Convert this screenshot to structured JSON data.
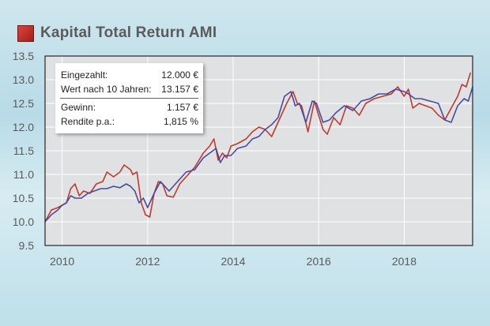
{
  "header": {
    "title": "Kapital Total Return AMI"
  },
  "info": {
    "rows": [
      {
        "label": "Eingezahlt:",
        "value": "12.000 €"
      },
      {
        "label": "Wert nach 10 Jahren:",
        "value": "13.157 €"
      },
      {
        "label": "Gewinn:",
        "value": "1.157 €"
      },
      {
        "label": "Rendite p.a.:",
        "value": "1,815 %"
      }
    ]
  },
  "colors": {
    "fund": "#c0392b",
    "comparison": "#4a4aa0",
    "plot_bg": "#dfe1e3",
    "grid": "#ffffff",
    "accent_square": "#b3241d"
  },
  "chart_data": {
    "type": "line",
    "title": "Kapital Total Return AMI",
    "xlabel": "",
    "ylabel": "",
    "xlim": [
      2009.6,
      2019.6
    ],
    "ylim": [
      9.5,
      13.5
    ],
    "xticks": [
      2010,
      2012,
      2014,
      2016,
      2018
    ],
    "xtick_labels": [
      "2010",
      "2012",
      "2014",
      "2016",
      "2018"
    ],
    "yticks": [
      9.5,
      10.0,
      10.5,
      11.0,
      11.5,
      12.0,
      12.5,
      13.0,
      13.5
    ],
    "ytick_labels": [
      "9.5",
      "10.0",
      "10.5",
      "11.0",
      "11.5",
      "12.0",
      "12.5",
      "13.0",
      "13.5"
    ],
    "grid": true,
    "series": [
      {
        "color": "#c0392b",
        "x": [
          2009.6,
          2009.75,
          2009.9,
          2010.0,
          2010.1,
          2010.2,
          2010.3,
          2010.4,
          2010.5,
          2010.65,
          2010.8,
          2010.95,
          2011.05,
          2011.2,
          2011.35,
          2011.45,
          2011.6,
          2011.65,
          2011.75,
          2011.85,
          2011.95,
          2012.05,
          2012.15,
          2012.25,
          2012.35,
          2012.45,
          2012.6,
          2012.75,
          2012.95,
          2013.1,
          2013.3,
          2013.45,
          2013.55,
          2013.65,
          2013.75,
          2013.85,
          2013.95,
          2014.1,
          2014.3,
          2014.45,
          2014.6,
          2014.75,
          2014.9,
          2015.0,
          2015.1,
          2015.25,
          2015.4,
          2015.5,
          2015.6,
          2015.75,
          2015.9,
          2016.0,
          2016.1,
          2016.2,
          2016.35,
          2016.5,
          2016.65,
          2016.8,
          2016.95,
          2017.1,
          2017.3,
          2017.5,
          2017.7,
          2017.85,
          2018.0,
          2018.1,
          2018.2,
          2018.35,
          2018.5,
          2018.65,
          2018.8,
          2018.95,
          2019.1,
          2019.25,
          2019.35,
          2019.45,
          2019.55
        ],
        "y": [
          10.0,
          10.25,
          10.3,
          10.35,
          10.4,
          10.7,
          10.8,
          10.55,
          10.65,
          10.6,
          10.8,
          10.85,
          11.05,
          10.95,
          11.05,
          11.2,
          11.1,
          11.0,
          11.05,
          10.4,
          10.15,
          10.1,
          10.6,
          10.85,
          10.8,
          10.55,
          10.52,
          10.8,
          11.0,
          11.15,
          11.45,
          11.6,
          11.75,
          11.3,
          11.45,
          11.35,
          11.6,
          11.65,
          11.75,
          11.9,
          12.0,
          11.95,
          11.8,
          12.0,
          12.2,
          12.5,
          12.75,
          12.5,
          12.45,
          11.9,
          12.55,
          12.25,
          11.95,
          11.85,
          12.2,
          12.05,
          12.45,
          12.4,
          12.25,
          12.5,
          12.6,
          12.65,
          12.7,
          12.85,
          12.65,
          12.8,
          12.4,
          12.5,
          12.45,
          12.4,
          12.25,
          12.15,
          12.4,
          12.65,
          12.9,
          12.85,
          13.15
        ]
      },
      {
        "color": "#4a4aa0",
        "x": [
          2009.6,
          2009.75,
          2009.9,
          2010.0,
          2010.1,
          2010.2,
          2010.3,
          2010.45,
          2010.6,
          2010.75,
          2010.9,
          2011.05,
          2011.2,
          2011.35,
          2011.5,
          2011.6,
          2011.7,
          2011.8,
          2011.9,
          2012.0,
          2012.15,
          2012.3,
          2012.5,
          2012.7,
          2012.9,
          2013.1,
          2013.3,
          2013.45,
          2013.6,
          2013.7,
          2013.8,
          2013.95,
          2014.1,
          2014.3,
          2014.45,
          2014.6,
          2014.75,
          2014.9,
          2015.05,
          2015.2,
          2015.35,
          2015.45,
          2015.55,
          2015.7,
          2015.85,
          2015.95,
          2016.1,
          2016.25,
          2016.4,
          2016.6,
          2016.8,
          2017.0,
          2017.2,
          2017.4,
          2017.6,
          2017.8,
          2018.0,
          2018.1,
          2018.25,
          2018.4,
          2018.6,
          2018.8,
          2018.95,
          2019.1,
          2019.25,
          2019.4,
          2019.5,
          2019.6
        ],
        "y": [
          10.0,
          10.15,
          10.25,
          10.35,
          10.4,
          10.55,
          10.5,
          10.5,
          10.6,
          10.65,
          10.7,
          10.7,
          10.75,
          10.72,
          10.8,
          10.75,
          10.65,
          10.4,
          10.5,
          10.3,
          10.6,
          10.85,
          10.65,
          10.85,
          11.05,
          11.1,
          11.35,
          11.45,
          11.55,
          11.25,
          11.4,
          11.4,
          11.55,
          11.6,
          11.75,
          11.8,
          11.95,
          12.05,
          12.2,
          12.65,
          12.75,
          12.45,
          12.5,
          12.1,
          12.55,
          12.5,
          12.1,
          12.15,
          12.3,
          12.45,
          12.35,
          12.55,
          12.6,
          12.7,
          12.7,
          12.8,
          12.75,
          12.7,
          12.6,
          12.6,
          12.55,
          12.5,
          12.15,
          12.1,
          12.45,
          12.6,
          12.55,
          12.85
        ]
      }
    ]
  }
}
